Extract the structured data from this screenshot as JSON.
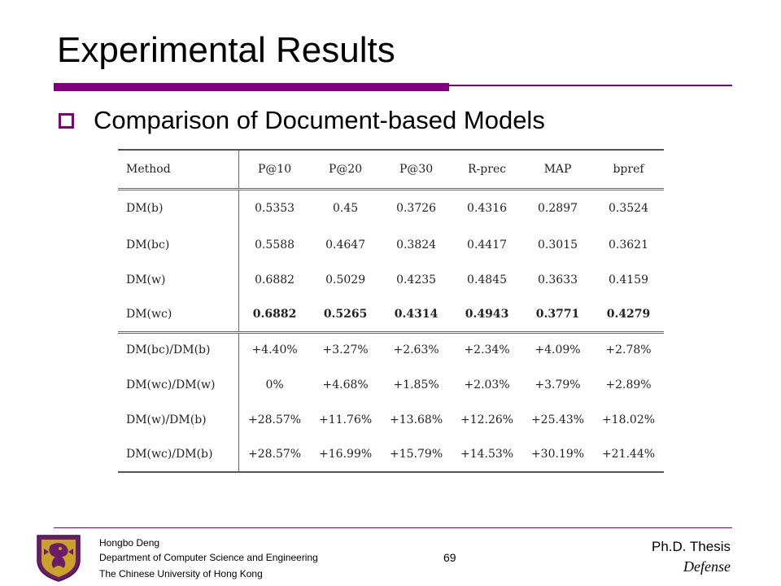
{
  "slide": {
    "title": "Experimental Results",
    "bullet": "Comparison of Document-based Models"
  },
  "table": {
    "headers": [
      "Method",
      "P@10",
      "P@20",
      "P@30",
      "R-prec",
      "MAP",
      "bpref"
    ],
    "rows_a": [
      {
        "method": "DM(b)",
        "values": [
          "0.5353",
          "0.45",
          "0.3726",
          "0.4316",
          "0.2897",
          "0.3524"
        ]
      },
      {
        "method": "DM(bc)",
        "values": [
          "0.5588",
          "0.4647",
          "0.3824",
          "0.4417",
          "0.3015",
          "0.3621"
        ]
      },
      {
        "method": "DM(w)",
        "values": [
          "0.6882",
          "0.5029",
          "0.4235",
          "0.4845",
          "0.3633",
          "0.4159"
        ]
      },
      {
        "method": "DM(wc)",
        "values": [
          "0.6882",
          "0.5265",
          "0.4314",
          "0.4943",
          "0.3771",
          "0.4279"
        ]
      }
    ],
    "rows_b": [
      {
        "method": "DM(bc)/DM(b)",
        "values": [
          "+4.40%",
          "+3.27%",
          "+2.63%",
          "+2.34%",
          "+4.09%",
          "+2.78%"
        ]
      },
      {
        "method": "DM(wc)/DM(w)",
        "values": [
          "0%",
          "+4.68%",
          "+1.85%",
          "+2.03%",
          "+3.79%",
          "+2.89%"
        ]
      },
      {
        "method": "DM(w)/DM(b)",
        "values": [
          "+28.57%",
          "+11.76%",
          "+13.68%",
          "+12.26%",
          "+25.43%",
          "+18.02%"
        ]
      },
      {
        "method": "DM(wc)/DM(b)",
        "values": [
          "+28.57%",
          "+16.99%",
          "+15.79%",
          "+14.53%",
          "+30.19%",
          "+21.44%"
        ]
      }
    ]
  },
  "footer": {
    "author": "Hongbo Deng",
    "department": "Department of Computer Science and Engineering",
    "university": "The Chinese University of Hong Kong",
    "page_number": "69",
    "thesis_title": "Ph.D. Thesis",
    "thesis_subtitle": "Defense"
  },
  "colors": {
    "accent": "#800080"
  },
  "icons": {
    "bullet": "hollow-square-icon",
    "logo": "university-crest-icon"
  }
}
